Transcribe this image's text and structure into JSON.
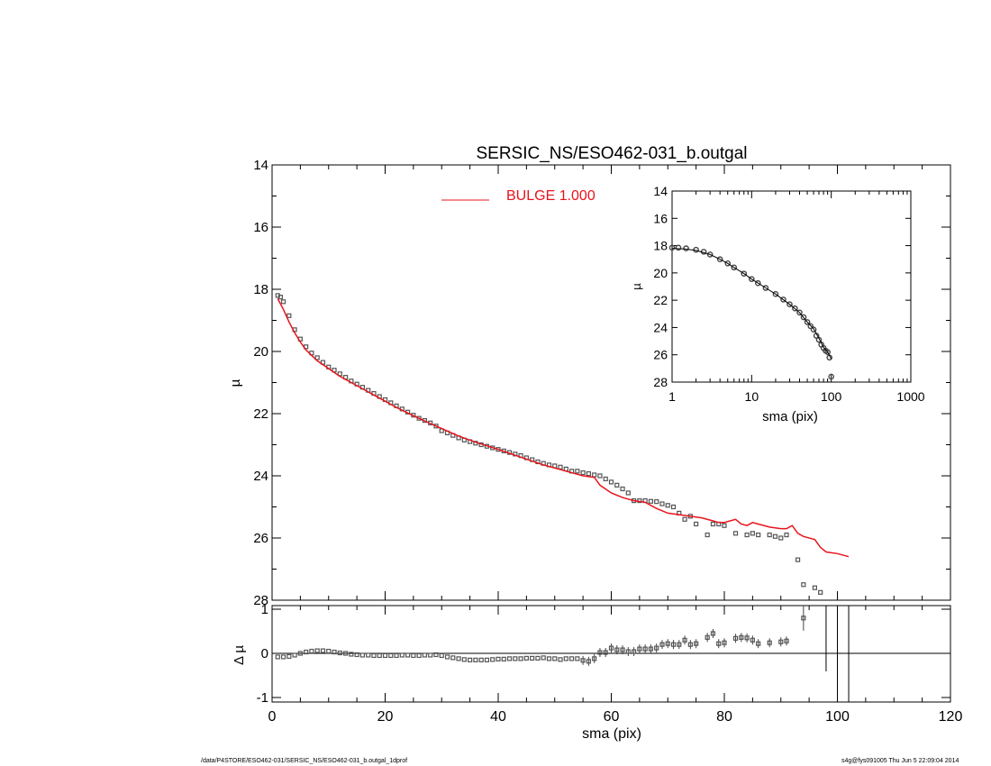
{
  "title": "SERSIC_NS/ESO462-031_b.outgal",
  "footer": {
    "path": "/data/P4STORE/ESO462-031/SERSIC_NS/ESO462-031_b.outgal_1dprof",
    "stamp": "s4g@fys091005  Thu Jun  5 22:09:04 2014"
  },
  "colors": {
    "model": "#e8141c",
    "data": "#555555",
    "axes": "#000000"
  },
  "chart_data": [
    {
      "type": "scatter",
      "panel": "main",
      "title": "SERSIC_NS/ESO462-031_b.outgal",
      "xlabel": "",
      "ylabel": "µ",
      "xlim": [
        0,
        120
      ],
      "ylim": [
        28,
        14
      ],
      "y_inverted": true,
      "yticks": [
        "14",
        "16",
        "18",
        "20",
        "22",
        "24",
        "26",
        "28"
      ],
      "legend": {
        "label": "BULGE  1.000",
        "placement": "top-center"
      },
      "series": [
        {
          "name": "BULGE  1.000",
          "style": "line",
          "x": [
            1,
            2,
            3,
            4,
            5,
            6,
            8,
            10,
            12,
            14,
            16,
            18,
            20,
            22,
            24,
            26,
            28,
            30,
            33,
            36,
            40,
            44,
            48,
            52,
            55,
            57,
            58,
            60,
            62,
            64,
            66,
            67,
            68,
            70,
            72,
            74,
            76,
            78,
            79,
            80,
            81,
            82,
            83,
            84,
            85,
            86,
            88,
            90,
            91,
            92,
            93,
            94,
            96,
            97,
            98,
            100,
            102
          ],
          "y": [
            18.3,
            18.65,
            19.05,
            19.4,
            19.7,
            19.95,
            20.3,
            20.55,
            20.8,
            21.0,
            21.2,
            21.4,
            21.6,
            21.8,
            21.98,
            22.15,
            22.32,
            22.48,
            22.72,
            22.92,
            23.15,
            23.4,
            23.65,
            23.85,
            24.0,
            24.05,
            24.3,
            24.55,
            24.7,
            24.8,
            24.85,
            24.95,
            25.05,
            25.2,
            25.25,
            25.3,
            25.35,
            25.45,
            25.5,
            25.5,
            25.45,
            25.4,
            25.55,
            25.6,
            25.5,
            25.55,
            25.65,
            25.7,
            25.7,
            25.6,
            25.85,
            25.95,
            26.05,
            26.3,
            26.45,
            26.5,
            26.6
          ]
        },
        {
          "name": "",
          "style": "open-square",
          "x": [
            1,
            1.5,
            2,
            3,
            4,
            5,
            6,
            7,
            8,
            9,
            10,
            11,
            12,
            13,
            14,
            15,
            16,
            17,
            18,
            19,
            20,
            21,
            22,
            23,
            24,
            25,
            26,
            27,
            28,
            29,
            30,
            31,
            32,
            33,
            34,
            35,
            36,
            37,
            38,
            39,
            40,
            41,
            42,
            43,
            44,
            45,
            46,
            47,
            48,
            49,
            50,
            51,
            52,
            53,
            54,
            55,
            56,
            57,
            58,
            59,
            60,
            61,
            62,
            63,
            64,
            65,
            66,
            67,
            68,
            69,
            70,
            71,
            72,
            73,
            74,
            75,
            77,
            78,
            79,
            80,
            82,
            84,
            85,
            86,
            88,
            89,
            90,
            91,
            93,
            94,
            96,
            97
          ],
          "y": [
            18.2,
            18.25,
            18.4,
            18.85,
            19.3,
            19.6,
            19.85,
            20.05,
            20.2,
            20.35,
            20.5,
            20.6,
            20.72,
            20.83,
            20.95,
            21.05,
            21.15,
            21.25,
            21.35,
            21.45,
            21.55,
            21.65,
            21.75,
            21.85,
            21.95,
            22.05,
            22.15,
            22.22,
            22.3,
            22.4,
            22.55,
            22.62,
            22.7,
            22.78,
            22.85,
            22.9,
            22.95,
            23.0,
            23.05,
            23.1,
            23.15,
            23.2,
            23.25,
            23.3,
            23.35,
            23.42,
            23.48,
            23.55,
            23.6,
            23.65,
            23.68,
            23.72,
            23.78,
            23.85,
            23.85,
            23.9,
            23.93,
            23.97,
            24.0,
            24.1,
            24.2,
            24.3,
            24.42,
            24.55,
            24.8,
            24.8,
            24.8,
            24.82,
            24.83,
            24.9,
            24.95,
            25.0,
            25.2,
            25.4,
            25.3,
            25.55,
            25.9,
            25.55,
            25.55,
            25.6,
            25.85,
            25.9,
            25.85,
            25.9,
            25.9,
            25.95,
            26.0,
            25.9,
            26.7,
            27.5,
            27.6,
            27.75
          ]
        }
      ]
    },
    {
      "type": "scatter",
      "panel": "inset",
      "xlabel": "sma (pix)",
      "ylabel": "µ",
      "x_scale": "log",
      "xlim": [
        1,
        1000
      ],
      "ylim": [
        28,
        14
      ],
      "y_inverted": true,
      "xticks": [
        "1",
        "10",
        "100",
        "1000"
      ],
      "yticks": [
        "14",
        "16",
        "18",
        "20",
        "22",
        "24",
        "26",
        "28"
      ],
      "series": [
        {
          "name": "",
          "style": "open-circle",
          "x": [
            1,
            1.2,
            1.5,
            2,
            2.5,
            3,
            4,
            5,
            6,
            8,
            10,
            12,
            15,
            20,
            25,
            30,
            35,
            40,
            45,
            50,
            55,
            60,
            65,
            70,
            75,
            80,
            85,
            90,
            95,
            100
          ],
          "y": [
            18.15,
            18.15,
            18.2,
            18.3,
            18.45,
            18.65,
            19.0,
            19.3,
            19.6,
            20.05,
            20.45,
            20.75,
            21.1,
            21.55,
            21.95,
            22.3,
            22.6,
            22.9,
            23.25,
            23.6,
            23.9,
            24.15,
            24.6,
            24.9,
            25.25,
            25.5,
            25.7,
            25.8,
            26.2,
            27.6
          ]
        },
        {
          "name": "",
          "style": "line",
          "x": [
            1,
            1.5,
            2,
            3,
            4,
            5,
            6,
            8,
            10,
            15,
            20,
            30,
            40,
            50,
            60,
            70,
            80,
            90,
            100
          ],
          "y": [
            18.2,
            18.25,
            18.35,
            18.65,
            19.0,
            19.3,
            19.6,
            20.05,
            20.45,
            21.1,
            21.55,
            22.3,
            22.9,
            23.6,
            24.1,
            24.8,
            25.45,
            25.8,
            26.3
          ]
        }
      ]
    },
    {
      "type": "scatter",
      "panel": "residual",
      "xlabel": "sma (pix)",
      "ylabel": "Δ µ",
      "xlim": [
        0,
        120
      ],
      "ylim": [
        -1,
        1
      ],
      "xticks": [
        "0",
        "20",
        "40",
        "60",
        "80",
        "100",
        "120"
      ],
      "yticks": [
        "1",
        "0",
        "-1"
      ],
      "series": [
        {
          "name": "",
          "style": "open-square-errorbar",
          "x": [
            1,
            2,
            3,
            4,
            5,
            6,
            7,
            8,
            9,
            10,
            11,
            12,
            13,
            14,
            15,
            16,
            17,
            18,
            19,
            20,
            21,
            22,
            23,
            24,
            25,
            26,
            27,
            28,
            29,
            30,
            31,
            32,
            33,
            34,
            35,
            36,
            37,
            38,
            39,
            40,
            41,
            42,
            43,
            44,
            45,
            46,
            47,
            48,
            49,
            50,
            51,
            52,
            53,
            54,
            55,
            56,
            57,
            58,
            59,
            60,
            61,
            62,
            63,
            64,
            65,
            66,
            67,
            68,
            69,
            70,
            71,
            72,
            73,
            74,
            75,
            77,
            78,
            79,
            80,
            82,
            83,
            84,
            85,
            86,
            88,
            90,
            91,
            94
          ],
          "y": [
            -0.08,
            -0.08,
            -0.07,
            -0.04,
            0.0,
            0.03,
            0.05,
            0.06,
            0.06,
            0.05,
            0.03,
            0.01,
            0.0,
            -0.02,
            -0.03,
            -0.04,
            -0.04,
            -0.05,
            -0.05,
            -0.05,
            -0.05,
            -0.05,
            -0.04,
            -0.04,
            -0.05,
            -0.05,
            -0.04,
            -0.04,
            -0.03,
            -0.05,
            -0.08,
            -0.1,
            -0.12,
            -0.14,
            -0.15,
            -0.15,
            -0.15,
            -0.15,
            -0.14,
            -0.13,
            -0.13,
            -0.12,
            -0.12,
            -0.12,
            -0.11,
            -0.11,
            -0.11,
            -0.1,
            -0.12,
            -0.12,
            -0.14,
            -0.12,
            -0.12,
            -0.12,
            -0.16,
            -0.18,
            -0.12,
            0.02,
            0.02,
            0.12,
            0.08,
            0.08,
            0.04,
            0.04,
            0.1,
            0.1,
            0.1,
            0.12,
            0.2,
            0.22,
            0.2,
            0.2,
            0.3,
            0.2,
            0.22,
            0.36,
            0.45,
            0.22,
            0.24,
            0.34,
            0.36,
            0.35,
            0.3,
            0.22,
            0.24,
            0.26,
            0.28,
            0.8
          ]
        }
      ],
      "vertical_lines_x": [
        98,
        100,
        102
      ]
    }
  ]
}
